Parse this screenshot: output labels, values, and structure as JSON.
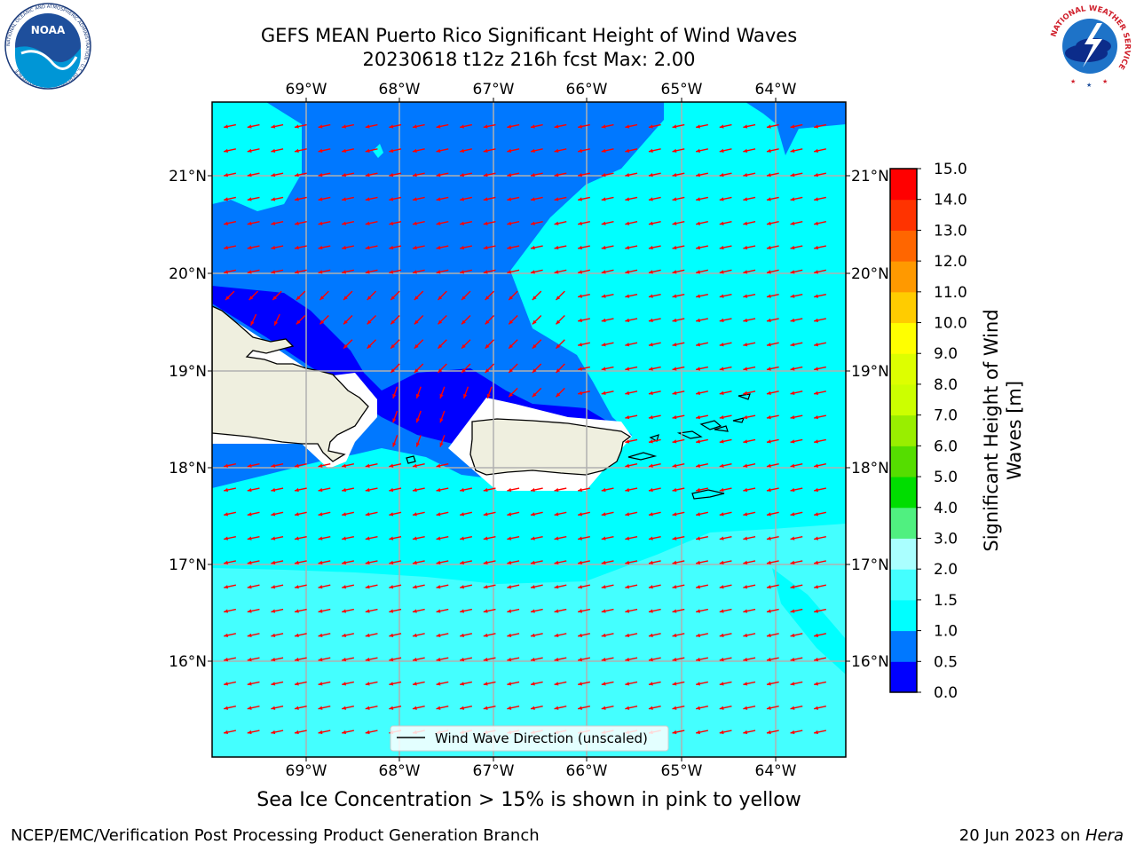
{
  "title": {
    "line1": "GEFS MEAN Puerto Rico Significant Height of Wind Waves",
    "line2": "20230618 t12z 216h fcst   Max: 2.00"
  },
  "map": {
    "lon_labels": [
      "69°W",
      "68°W",
      "67°W",
      "66°W",
      "65°W",
      "64°W"
    ],
    "lat_labels": [
      "21°N",
      "20°N",
      "19°N",
      "18°N",
      "17°N",
      "16°N"
    ],
    "legend_label": "Wind Wave Direction (unscaled)",
    "colors": {
      "h_0_0_5": "#0000ff",
      "h_0_5_1_0": "#0078ff",
      "h_1_0_1_5": "#00ffff",
      "h_1_5_2_0": "#44ffff",
      "land": "#efefdf",
      "arrow": "#ff0000",
      "grid": "#b0b0b0"
    }
  },
  "colorbar": {
    "label": "Significant Height of Wind Waves [m]",
    "label_line1": "Significant Height of Wind",
    "label_line2": "Waves [m]",
    "ticks": [
      "0.0",
      "0.5",
      "1.0",
      "1.5",
      "2.0",
      "3.0",
      "4.0",
      "5.0",
      "6.0",
      "7.0",
      "8.0",
      "9.0",
      "10.0",
      "11.0",
      "12.0",
      "13.0",
      "14.0",
      "15.0"
    ],
    "colors": [
      "#0000ff",
      "#0078ff",
      "#00ffff",
      "#44ffff",
      "#aaffff",
      "#50f080",
      "#00dd00",
      "#55dd00",
      "#99ee00",
      "#ccff00",
      "#ddff00",
      "#ffff00",
      "#ffcc00",
      "#ff9900",
      "#ff6600",
      "#ff3300",
      "#ff0000"
    ]
  },
  "subtitle": "Sea Ice Concentration > 15% is shown in pink to yellow",
  "footer": {
    "left": "NCEP/EMC/Verification Post Processing Product Generation Branch",
    "date": "20 Jun 2023 on ",
    "host": "Hera"
  },
  "logos": {
    "noaa_text": "NOAA",
    "noaa_ring": "NATIONAL OCEANIC AND ATMOSPHERIC ADMINISTRATION · U.S. DEPARTMENT OF COMMERCE",
    "nws_ring": "NATIONAL WEATHER SERVICE"
  }
}
